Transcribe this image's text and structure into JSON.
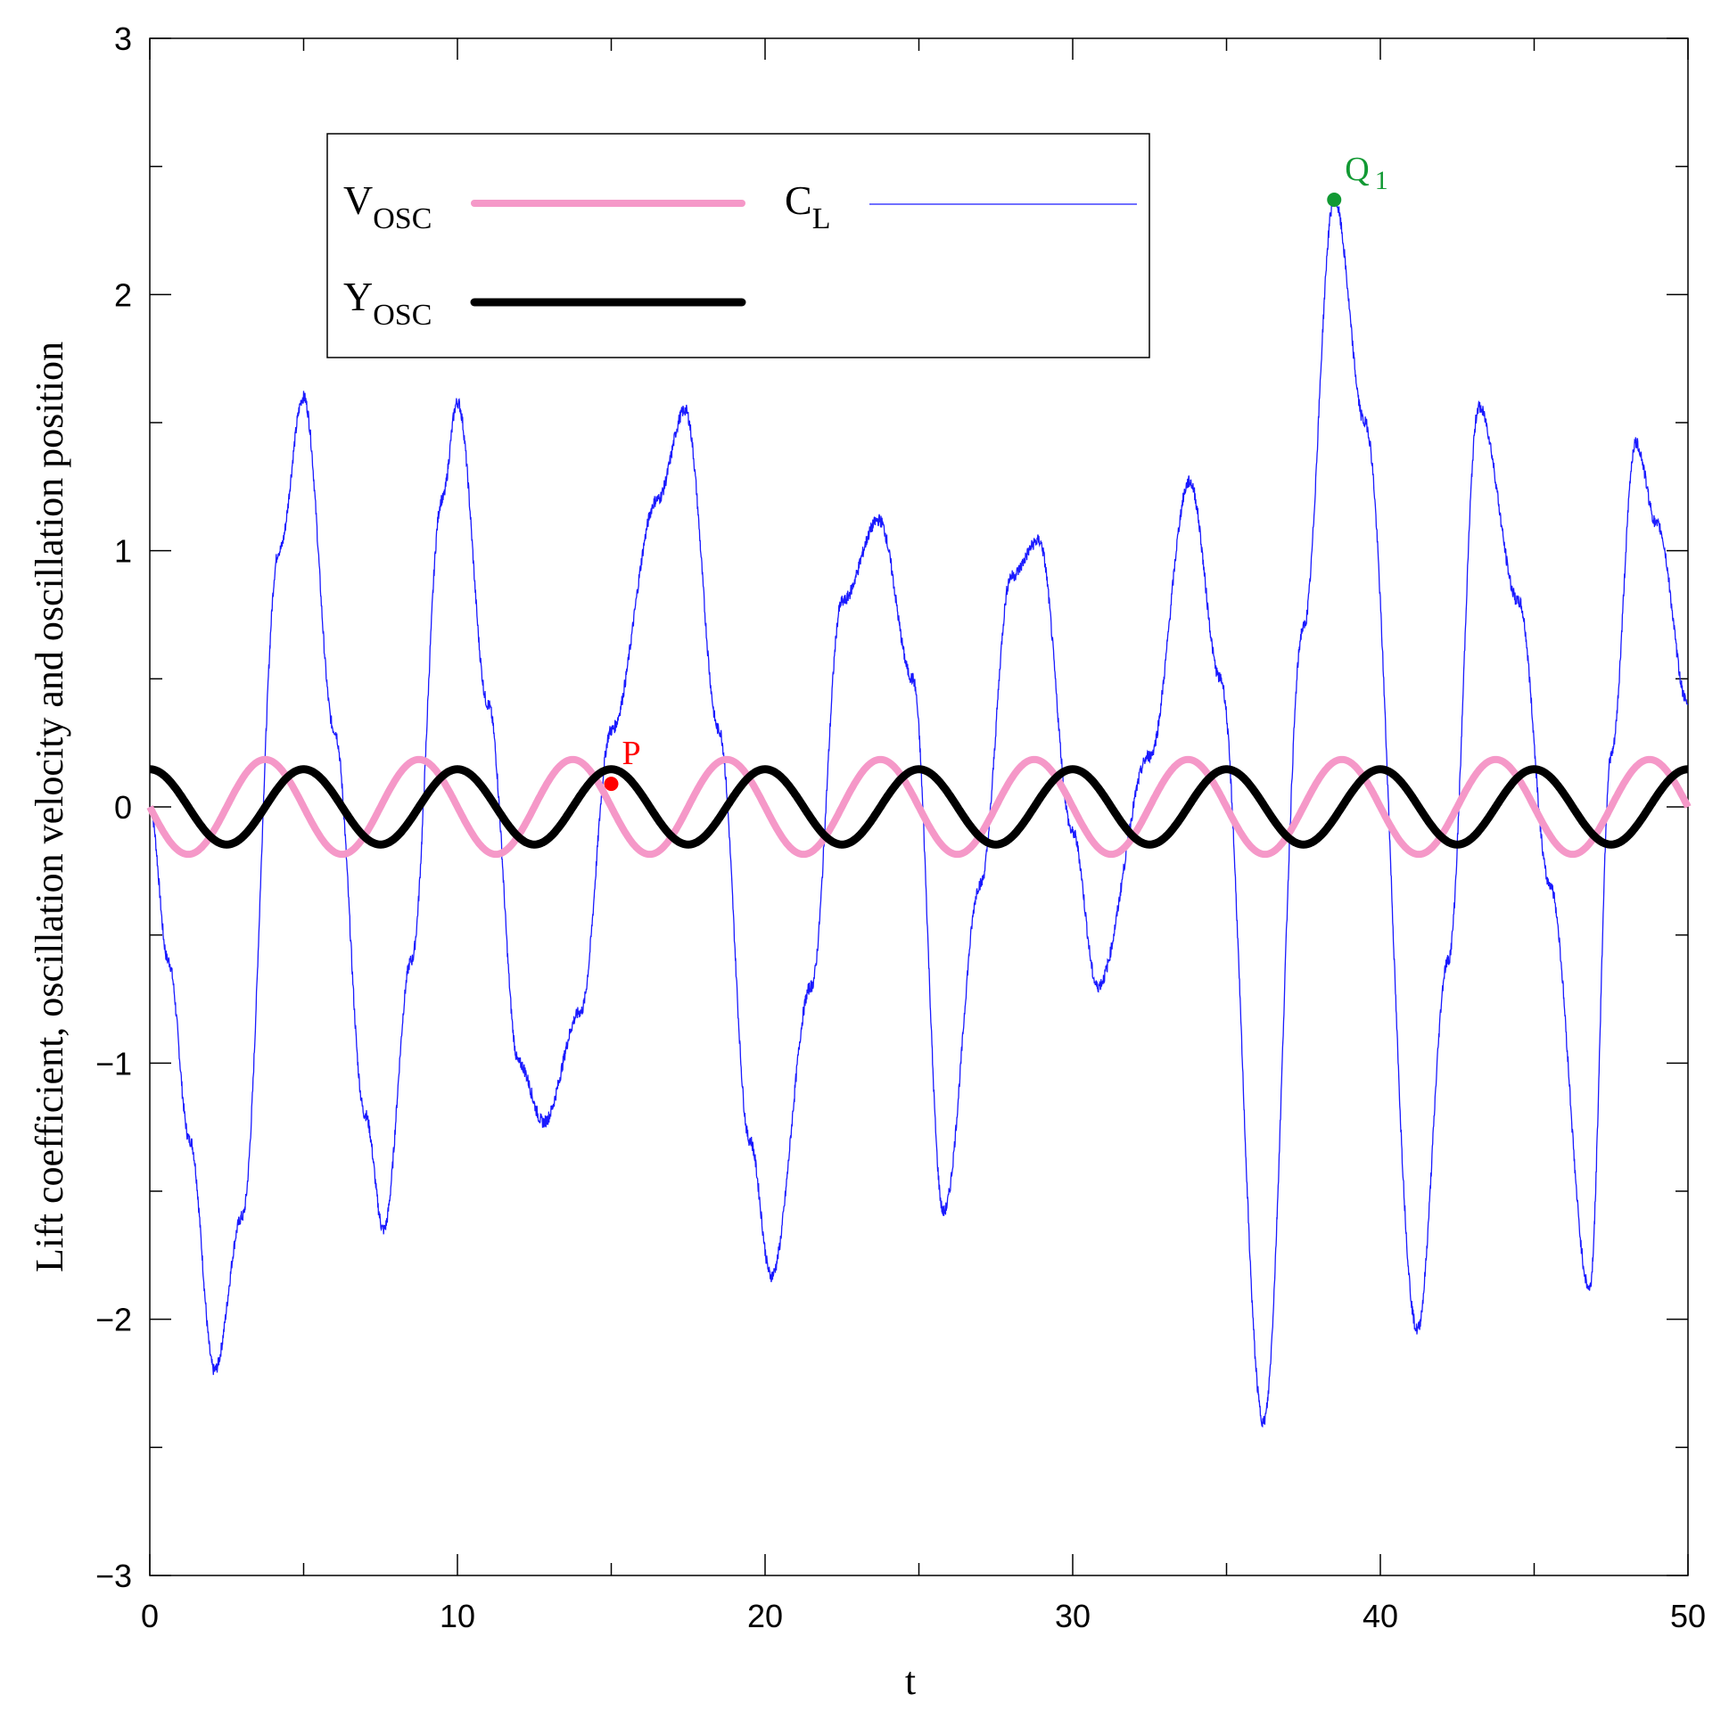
{
  "chart_data": {
    "type": "line",
    "xlabel": "t",
    "ylabel": "Lift coefficient, oscillation velocity and oscillation position",
    "xlim": [
      0,
      50
    ],
    "ylim": [
      -3,
      3
    ],
    "x_ticks": [
      0,
      10,
      20,
      30,
      40,
      50
    ],
    "y_ticks": [
      -3,
      -2,
      -1,
      0,
      1,
      2,
      3
    ],
    "grid": false,
    "legend_position": "top-left",
    "series": [
      {
        "name": "V",
        "name_subscript": "OSC",
        "color": "#f598c8",
        "description_shape": "sinusoid",
        "amplitude": 0.185,
        "period": 5.0,
        "x": [
          0,
          1.25,
          3.75,
          6.25,
          8.75,
          11.25,
          13.75,
          16.25,
          18.75,
          21.25,
          23.75,
          26.25,
          28.75,
          31.25,
          33.75,
          36.25,
          38.75,
          41.25,
          43.75,
          46.25,
          48.75,
          50
        ],
        "values": [
          0,
          -0.185,
          0.185,
          -0.185,
          0.185,
          -0.185,
          0.185,
          -0.185,
          0.185,
          -0.185,
          0.185,
          -0.185,
          0.185,
          -0.185,
          0.185,
          -0.185,
          0.185,
          -0.185,
          0.185,
          -0.185,
          0.185,
          0
        ]
      },
      {
        "name": "Y",
        "name_subscript": "OSC",
        "color": "#000000",
        "amplitude": 0.147,
        "period": 5.0,
        "x": [
          0,
          2.5,
          5,
          7.5,
          10,
          12.5,
          15,
          17.5,
          20,
          22.5,
          25,
          27.5,
          30,
          32.5,
          35,
          37.5,
          40,
          42.5,
          45,
          47.5,
          50
        ],
        "values": [
          0.147,
          -0.147,
          0.147,
          -0.147,
          0.147,
          -0.147,
          0.147,
          -0.147,
          0.147,
          -0.147,
          0.147,
          -0.147,
          0.147,
          -0.147,
          0.147,
          -0.147,
          0.147,
          -0.147,
          0.147,
          -0.147,
          0.147
        ]
      },
      {
        "name": "C",
        "name_subscript": "L",
        "color": "#1a1aff",
        "x": [
          0,
          0.6,
          1.3,
          2.1,
          3.0,
          4.2,
          5.0,
          6.0,
          7.0,
          7.6,
          8.5,
          9.5,
          10.0,
          11.0,
          12.0,
          12.8,
          14.0,
          15.0,
          16.5,
          17.4,
          18.5,
          19.5,
          20.2,
          21.5,
          22.5,
          23.7,
          24.8,
          25.8,
          27.0,
          28.0,
          28.9,
          30.0,
          30.8,
          32.5,
          33.8,
          34.8,
          36.2,
          37.5,
          38.5,
          39.5,
          41.2,
          42.2,
          43.2,
          44.5,
          45.5,
          46.8,
          47.5,
          48.3,
          49.0,
          50.0
        ],
        "values": [
          0.0,
          -0.6,
          -1.3,
          -2.2,
          -1.6,
          1.0,
          1.6,
          0.3,
          -1.2,
          -1.65,
          -0.6,
          1.2,
          1.58,
          0.4,
          -1.0,
          -1.23,
          -0.8,
          0.3,
          1.2,
          1.55,
          0.3,
          -1.3,
          -1.83,
          -0.7,
          0.8,
          1.12,
          0.5,
          -1.58,
          -0.3,
          0.9,
          1.04,
          -0.1,
          -0.7,
          0.2,
          1.27,
          0.5,
          -2.4,
          0.7,
          2.37,
          1.5,
          -2.04,
          -0.6,
          1.56,
          0.8,
          -0.3,
          -1.88,
          0.2,
          1.42,
          1.1,
          0.4
        ]
      }
    ],
    "annotations": [
      {
        "label": "P",
        "x": 15.0,
        "y": 0.09,
        "color": "#ff0000"
      },
      {
        "label": "Q",
        "label_subscript": "1",
        "x": 38.5,
        "y": 2.37,
        "color": "#119933"
      }
    ]
  }
}
